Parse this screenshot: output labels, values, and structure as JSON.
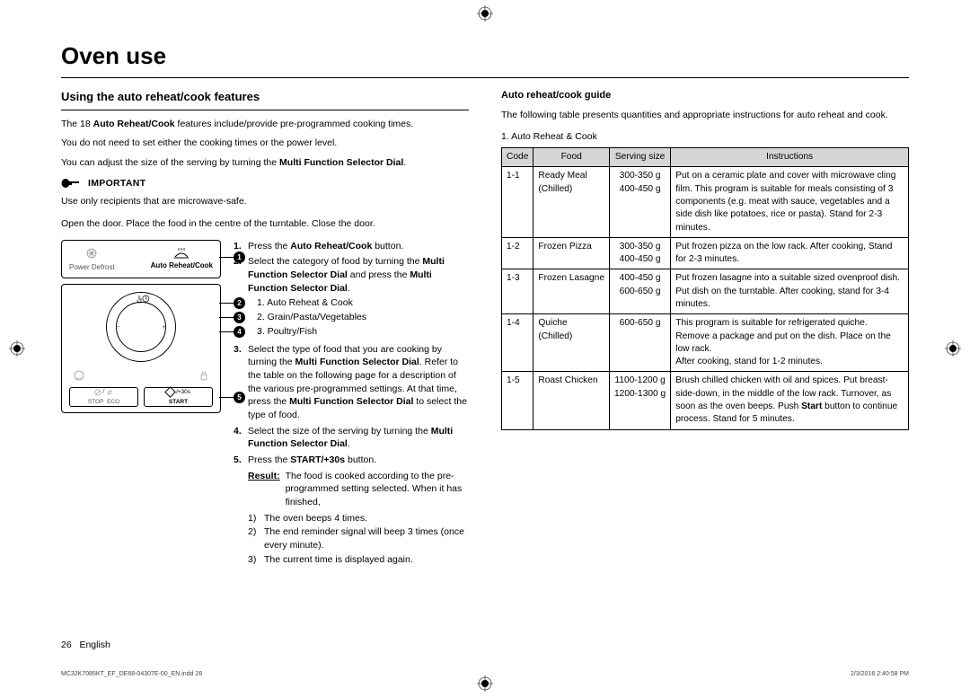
{
  "title": "Oven use",
  "section_heading": "Using the auto reheat/cook features",
  "intro1_a": "The 18 ",
  "intro1_bold": "Auto Reheat/Cook",
  "intro1_b": " features include/provide pre-programmed cooking times.",
  "intro2": "You do not need to set either the cooking times or the power level.",
  "intro3_a": "You can adjust the size of the serving by turning the ",
  "intro3_bold": "Multi Function Selector Dial",
  "intro3_b": ".",
  "important_label": "IMPORTANT",
  "important_text": "Use only recipients that are microwave-safe.",
  "open_door": "Open the door. Place the food in the centre of the turntable. Close the door.",
  "diagram": {
    "power_defrost": "Power Defrost",
    "auto_reheat": "Auto Reheat/Cook",
    "stop": "STOP",
    "eco": "ECO",
    "start": "START",
    "plus30": "/+30s",
    "callouts": {
      "c1": "1",
      "c2": "2",
      "c3": "3",
      "c4": "4",
      "c5": "5"
    }
  },
  "steps": {
    "s1n": "1.",
    "s1a": "Press the ",
    "s1b": "Auto Reheat/Cook",
    "s1c": " button.",
    "s2n": "2.",
    "s2a": "Select the category of food by turning the ",
    "s2b": "Multi Function Selector Dial",
    "s2c": " and press the ",
    "s2d": "Multi Function Selector Dial",
    "s2e": ".",
    "sub1": "1. Auto Reheat & Cook",
    "sub2": "2. Grain/Pasta/Vegetables",
    "sub3": "3. Poultry/Fish",
    "s3n": "3.",
    "s3a": "Select the type of food that you are cooking by turning the ",
    "s3b": "Multi Function Selector Dial",
    "s3c": ". Refer to the table on the following page for a description of the various pre-programmed settings. At that time, press the ",
    "s3d": "Multi Function Selector Dial",
    "s3e": " to select the type of food.",
    "s4n": "4.",
    "s4a": "Select the size of the serving by turning the ",
    "s4b": "Multi Function Selector Dial",
    "s4c": ".",
    "s5n": "5.",
    "s5a": "Press the ",
    "s5b": "START/+30s",
    "s5c": " button.",
    "result_label": "Result:",
    "result_text": "The food is cooked according to the pre-programmed setting selected. When it has finished,",
    "post1n": "1)",
    "post1": "The oven beeps 4 times.",
    "post2n": "2)",
    "post2": "The end reminder signal will beep 3 times (once every minute).",
    "post3n": "3)",
    "post3": "The current time is displayed again."
  },
  "guide_heading": "Auto reheat/cook guide",
  "guide_intro": "The following table presents quantities and appropriate instructions for auto reheat and cook.",
  "table_caption": "1. Auto Reheat & Cook",
  "th": {
    "code": "Code",
    "food": "Food",
    "size": "Serving size",
    "instructions": "Instructions"
  },
  "rows": [
    {
      "code": "1-1",
      "food": "Ready Meal (Chilled)",
      "size": "300-350 g\n400-450 g",
      "ins": "Put on a ceramic plate and cover with microwave cling film. This program is suitable for meals consisting of 3 components (e.g. meat with sauce, vegetables and a side dish like potatoes, rice or pasta). Stand for 2-3 minutes."
    },
    {
      "code": "1-2",
      "food": "Frozen Pizza",
      "size": "300-350 g\n400-450 g",
      "ins": "Put frozen pizza on the low rack. After cooking, Stand for 2-3 minutes."
    },
    {
      "code": "1-3",
      "food": "Frozen Lasagne",
      "size": "400-450 g\n600-650 g",
      "ins": "Put frozen lasagne into a suitable sized ovenproof dish.\nPut dish on the turntable. After cooking, stand for 3-4 minutes."
    },
    {
      "code": "1-4",
      "food": "Quiche (Chilled)",
      "size": "600-650 g",
      "ins": "This program is suitable for refrigerated quiche. Remove a package and put on the dish. Place on the low rack.\nAfter cooking, stand for 1-2 minutes."
    },
    {
      "code": "1-5",
      "food": "Roast Chicken",
      "size": "1100-1200 g\n1200-1300 g",
      "ins_a": "Brush chilled chicken with oil and spices. Put breast-side-down, in the middle of the low rack. Turnover, as soon as the oven beeps. Push ",
      "ins_b": "Start",
      "ins_c": " button to continue process. Stand for 5 minutes."
    }
  ],
  "footer": {
    "page": "26",
    "lang": "English"
  },
  "print": {
    "left": "MC32K7085KT_EF_DE68-04307E-00_EN.indd   26",
    "right": "2/3/2016   2:40:58 PM"
  }
}
